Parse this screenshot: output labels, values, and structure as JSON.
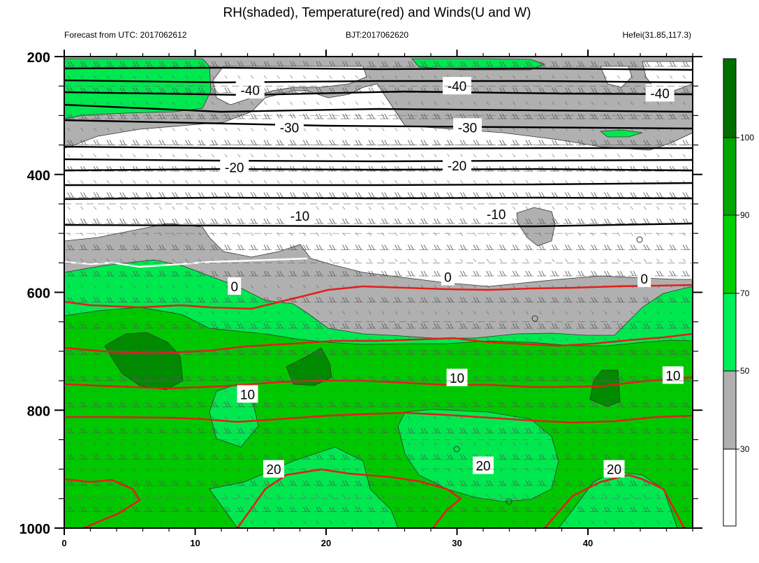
{
  "chart_data": {
    "type": "contour",
    "title": "RH(shaded), Temperature(red) and Winds(U and W)",
    "left_string": "Forecast from UTC: 2017062612",
    "center_string": "BJT:2017062620",
    "right_string": "Hefei(31.85,117.3)",
    "x": {
      "range": [
        0,
        48
      ],
      "ticks": [
        "0",
        "10",
        "20",
        "30",
        "40"
      ],
      "tick_values": [
        0,
        10,
        20,
        30,
        40
      ]
    },
    "y": {
      "range": [
        200,
        1000
      ],
      "inverted": true,
      "ticks": [
        "200",
        "400",
        "600",
        "800",
        "1000"
      ],
      "tick_values": [
        200,
        400,
        600,
        800,
        1000
      ]
    },
    "rh_levels": [
      30,
      50,
      70,
      90,
      100
    ],
    "colorbar_labels": [
      "30",
      "50",
      "70",
      "90",
      "100"
    ],
    "colors": {
      "rh_below_30": "#ffffff",
      "rh_30_50": "#b0b0b0",
      "rh_50_70": "#00e850",
      "rh_70_90": "#00c800",
      "rh_90_100": "#008a00",
      "temperature": "#e0201a",
      "temperature_cold": "#000000",
      "temperature_zero": "#ffffff"
    },
    "temperature_labels": [
      {
        "text": "-40",
        "x": 14.2,
        "p": 257
      },
      {
        "text": "-40",
        "x": 30.0,
        "p": 250
      },
      {
        "text": "-40",
        "x": 45.5,
        "p": 262
      },
      {
        "text": "-30",
        "x": 17.2,
        "p": 320
      },
      {
        "text": "-30",
        "x": 30.8,
        "p": 320
      },
      {
        "text": "-20",
        "x": 13.0,
        "p": 388
      },
      {
        "text": "-20",
        "x": 30.0,
        "p": 385
      },
      {
        "text": "-10",
        "x": 18.0,
        "p": 470
      },
      {
        "text": "-10",
        "x": 33.0,
        "p": 467
      },
      {
        "text": "0",
        "x": 13.0,
        "p": 590
      },
      {
        "text": "0",
        "x": 29.3,
        "p": 574
      },
      {
        "text": "0",
        "x": 44.3,
        "p": 577
      },
      {
        "text": "10",
        "x": 14.0,
        "p": 773
      },
      {
        "text": "10",
        "x": 30.0,
        "p": 745
      },
      {
        "text": "10",
        "x": 46.5,
        "p": 741
      },
      {
        "text": "20",
        "x": 16.0,
        "p": 900
      },
      {
        "text": "20",
        "x": 32.0,
        "p": 894
      },
      {
        "text": "20",
        "x": 42.0,
        "p": 900
      }
    ]
  }
}
